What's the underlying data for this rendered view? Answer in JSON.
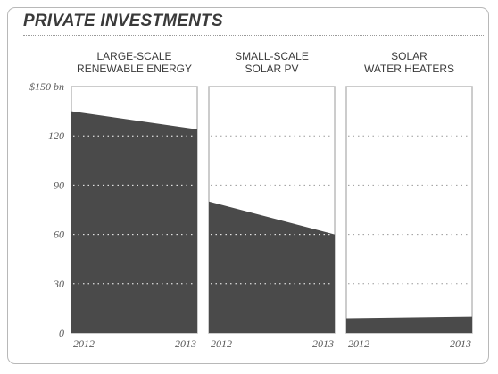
{
  "header": {
    "title": "PRIVATE INVESTMENTS"
  },
  "colors": {
    "fill": "#4a4a4a",
    "panel_border": "#bcbcbc",
    "grid": "#ffffff",
    "text": "#3a3a3a"
  },
  "chart_data": {
    "type": "area",
    "title": "PRIVATE INVESTMENTS",
    "ylim": [
      0,
      150
    ],
    "yticks": [
      0,
      30,
      60,
      90,
      120,
      150
    ],
    "ytick_labels": [
      "0",
      "30",
      "60",
      "90",
      "120",
      "$150 bn"
    ],
    "unit": "$ bn",
    "grid": true,
    "panels": [
      {
        "title_lines": [
          "LARGE-SCALE",
          "RENEWABLE ENERGY"
        ],
        "x": [
          "2012",
          "2013"
        ],
        "values": [
          135,
          124
        ]
      },
      {
        "title_lines": [
          "SMALL-SCALE",
          "SOLAR PV"
        ],
        "x": [
          "2012",
          "2013"
        ],
        "values": [
          80,
          60
        ]
      },
      {
        "title_lines": [
          "SOLAR",
          "WATER HEATERS"
        ],
        "x": [
          "2012",
          "2013"
        ],
        "values": [
          9,
          10
        ]
      }
    ]
  }
}
